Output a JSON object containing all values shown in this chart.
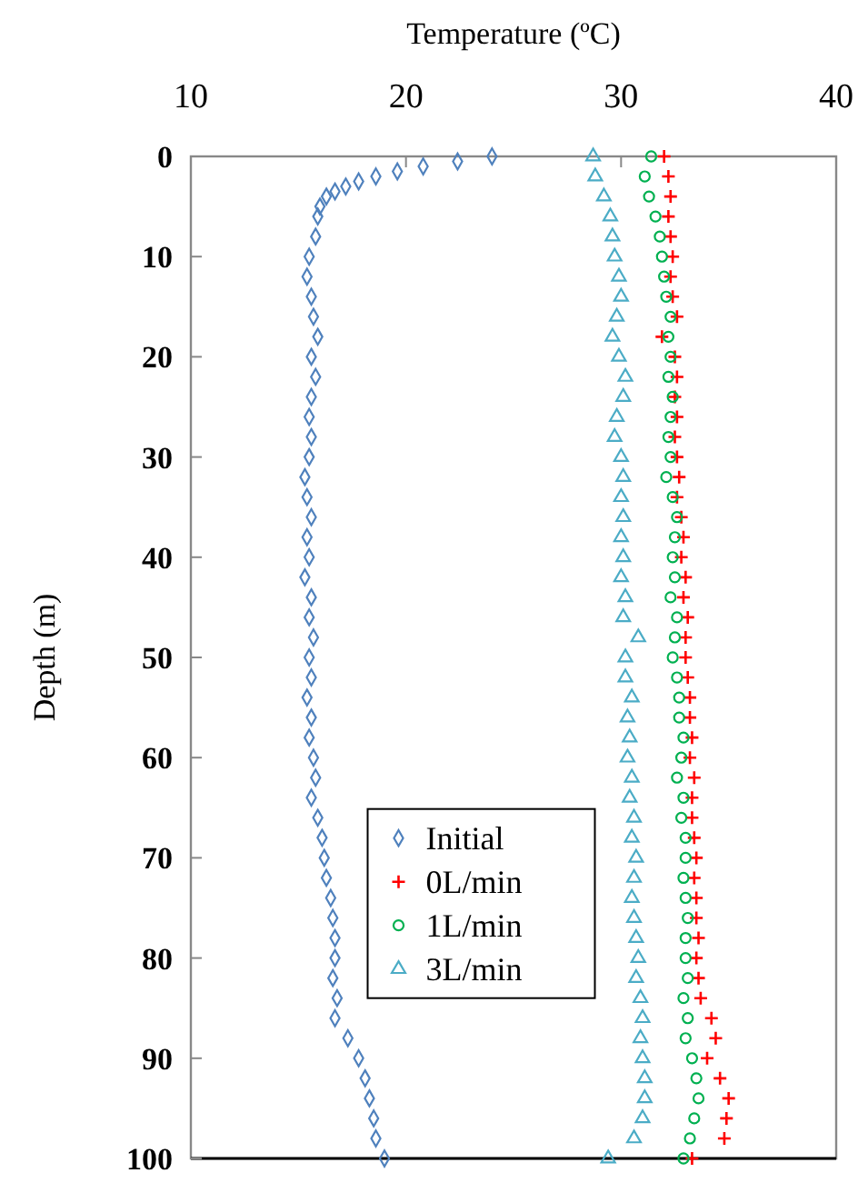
{
  "chart_data": {
    "type": "scatter",
    "xlabel": "Temperature (ºC)",
    "ylabel": "Depth (m)",
    "xlim": [
      10,
      40
    ],
    "xticks": [
      10,
      20,
      30,
      40
    ],
    "ylim": [
      100,
      0
    ],
    "yticks": [
      0,
      10,
      20,
      30,
      40,
      50,
      60,
      70,
      80,
      90,
      100
    ],
    "grid": false,
    "legend": "bottom",
    "series": [
      {
        "name": "Initial",
        "color": "#4f81bd",
        "marker": "diamond",
        "x": [
          24.0,
          22.4,
          20.8,
          19.6,
          18.6,
          17.8,
          17.2,
          16.7,
          16.3,
          16.0,
          15.9,
          15.8,
          15.5,
          15.4,
          15.6,
          15.7,
          15.9,
          15.6,
          15.8,
          15.6,
          15.5,
          15.6,
          15.5,
          15.3,
          15.4,
          15.6,
          15.4,
          15.5,
          15.3,
          15.6,
          15.5,
          15.7,
          15.5,
          15.6,
          15.4,
          15.6,
          15.5,
          15.7,
          15.8,
          15.6,
          15.9,
          16.1,
          16.2,
          16.3,
          16.5,
          16.6,
          16.7,
          16.7,
          16.6,
          16.8,
          16.7,
          17.3,
          17.8,
          18.1,
          18.3,
          18.5,
          18.6,
          19.0
        ],
        "values": [
          0,
          0.5,
          1,
          1.5,
          2,
          2.5,
          3,
          3.5,
          4,
          5,
          6,
          8,
          10,
          12,
          14,
          16,
          18,
          20,
          22,
          24,
          26,
          28,
          30,
          32,
          34,
          36,
          38,
          40,
          42,
          44,
          46,
          48,
          50,
          52,
          54,
          56,
          58,
          60,
          62,
          64,
          66,
          68,
          70,
          72,
          74,
          76,
          78,
          80,
          82,
          84,
          86,
          88,
          90,
          92,
          94,
          96,
          98,
          100
        ]
      },
      {
        "name": "0L/min",
        "color": "#ff0000",
        "marker": "cross",
        "x": [
          32.0,
          32.2,
          32.3,
          32.2,
          32.3,
          32.4,
          32.3,
          32.4,
          32.6,
          31.9,
          32.5,
          32.6,
          32.5,
          32.6,
          32.5,
          32.6,
          32.7,
          32.6,
          32.8,
          32.9,
          32.8,
          33.0,
          32.9,
          33.1,
          33.0,
          33.0,
          33.1,
          33.2,
          33.2,
          33.3,
          33.2,
          33.4,
          33.3,
          33.3,
          33.4,
          33.5,
          33.4,
          33.5,
          33.5,
          33.6,
          33.5,
          33.6,
          33.7,
          34.2,
          34.4,
          34.0,
          34.6,
          35.0,
          34.9,
          34.8,
          33.3
        ],
        "values": [
          0,
          2,
          4,
          6,
          8,
          10,
          12,
          14,
          16,
          18,
          20,
          22,
          24,
          26,
          28,
          30,
          32,
          34,
          36,
          38,
          40,
          42,
          44,
          46,
          48,
          50,
          52,
          54,
          56,
          58,
          60,
          62,
          64,
          66,
          68,
          70,
          72,
          74,
          76,
          78,
          80,
          82,
          84,
          86,
          88,
          90,
          92,
          94,
          96,
          98,
          100
        ]
      },
      {
        "name": "1L/min",
        "color": "#00b050",
        "marker": "circle",
        "x": [
          31.4,
          31.1,
          31.3,
          31.6,
          31.8,
          31.9,
          32.0,
          32.1,
          32.3,
          32.2,
          32.3,
          32.2,
          32.4,
          32.3,
          32.2,
          32.3,
          32.1,
          32.4,
          32.6,
          32.5,
          32.4,
          32.5,
          32.3,
          32.6,
          32.5,
          32.4,
          32.6,
          32.7,
          32.7,
          32.9,
          32.8,
          32.6,
          32.9,
          32.8,
          33.0,
          33.0,
          32.9,
          33.0,
          33.1,
          33.0,
          33.0,
          33.1,
          32.9,
          33.1,
          33.0,
          33.3,
          33.5,
          33.6,
          33.4,
          33.2,
          32.9
        ],
        "values": [
          0,
          2,
          4,
          6,
          8,
          10,
          12,
          14,
          16,
          18,
          20,
          22,
          24,
          26,
          28,
          30,
          32,
          34,
          36,
          38,
          40,
          42,
          44,
          46,
          48,
          50,
          52,
          54,
          56,
          58,
          60,
          62,
          64,
          66,
          68,
          70,
          72,
          74,
          76,
          78,
          80,
          82,
          84,
          86,
          88,
          90,
          92,
          94,
          96,
          98,
          100
        ]
      },
      {
        "name": "3L/min",
        "color": "#4bacc6",
        "marker": "triangle",
        "x": [
          28.7,
          28.8,
          29.2,
          29.5,
          29.6,
          29.7,
          29.9,
          30.0,
          29.8,
          29.6,
          29.9,
          30.2,
          30.1,
          29.8,
          29.7,
          30.0,
          30.1,
          30.0,
          30.1,
          30.0,
          30.1,
          30.0,
          30.2,
          30.1,
          30.8,
          30.2,
          30.2,
          30.5,
          30.3,
          30.4,
          30.3,
          30.5,
          30.4,
          30.6,
          30.5,
          30.7,
          30.6,
          30.5,
          30.6,
          30.7,
          30.8,
          30.7,
          30.9,
          31.0,
          30.9,
          31.0,
          31.1,
          31.1,
          31.0,
          30.6,
          29.4
        ],
        "values": [
          0,
          2,
          4,
          6,
          8,
          10,
          12,
          14,
          16,
          18,
          20,
          22,
          24,
          26,
          28,
          30,
          32,
          34,
          36,
          38,
          40,
          42,
          44,
          46,
          48,
          50,
          52,
          54,
          56,
          58,
          60,
          62,
          64,
          66,
          68,
          70,
          72,
          74,
          76,
          78,
          80,
          82,
          84,
          86,
          88,
          90,
          92,
          94,
          96,
          98,
          100
        ]
      }
    ]
  }
}
